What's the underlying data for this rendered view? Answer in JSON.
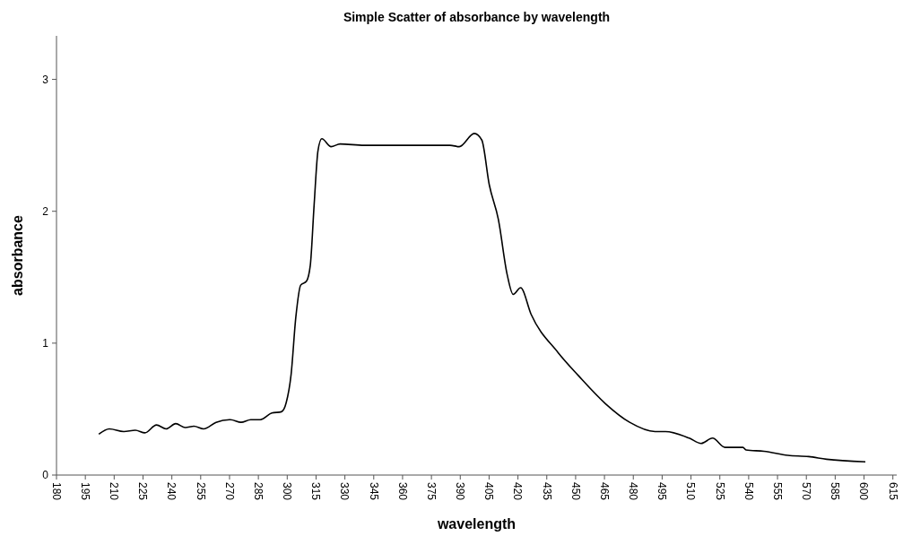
{
  "chart_data": {
    "type": "line",
    "title": "Simple Scatter of absorbance by wavelength",
    "xlabel": "wavelength",
    "ylabel": "absorbance",
    "xlim": [
      180,
      617
    ],
    "xticks": [
      180,
      195,
      210,
      225,
      240,
      255,
      270,
      285,
      300,
      315,
      330,
      345,
      360,
      375,
      390,
      405,
      420,
      435,
      450,
      465,
      480,
      495,
      510,
      525,
      540,
      555,
      570,
      585,
      600,
      615
    ],
    "ylim": [
      0,
      3.33
    ],
    "yticks": [
      0,
      1,
      2,
      3
    ],
    "grid": false,
    "marker": "none",
    "line_style": "solid",
    "series": [
      {
        "color": "#000000",
        "x": [
          202,
          207.5,
          215,
          221,
          226,
          232,
          237,
          242,
          247,
          251.5,
          256.5,
          263,
          270.5,
          276,
          281,
          286,
          292,
          297,
          299.5,
          302,
          304.5,
          307,
          310,
          312,
          314,
          316,
          318,
          322.8,
          327.5,
          340,
          360,
          384.7,
          389.5,
          397.3,
          401.2,
          405.1,
          409.8,
          414.4,
          417.5,
          421.4,
          426.8,
          440.8,
          451.7,
          465.6,
          478.1,
          491.3,
          496.7,
          509.1,
          515.3,
          521.2,
          527.7,
          537,
          538.6,
          548,
          560.4,
          571.2,
          580.5,
          600.7
        ],
        "values": [
          0.31,
          0.35,
          0.33,
          0.34,
          0.32,
          0.38,
          0.35,
          0.39,
          0.36,
          0.37,
          0.35,
          0.4,
          0.42,
          0.4,
          0.42,
          0.42,
          0.47,
          0.48,
          0.55,
          0.76,
          1.2,
          1.44,
          1.47,
          1.59,
          2.05,
          2.46,
          2.55,
          2.49,
          2.51,
          2.5,
          2.5,
          2.5,
          2.49,
          2.59,
          2.54,
          2.2,
          1.94,
          1.52,
          1.37,
          1.42,
          1.22,
          0.93,
          0.75,
          0.54,
          0.4,
          0.33,
          0.33,
          0.28,
          0.24,
          0.28,
          0.21,
          0.21,
          0.19,
          0.18,
          0.15,
          0.14,
          0.12,
          0.1
        ]
      }
    ]
  }
}
